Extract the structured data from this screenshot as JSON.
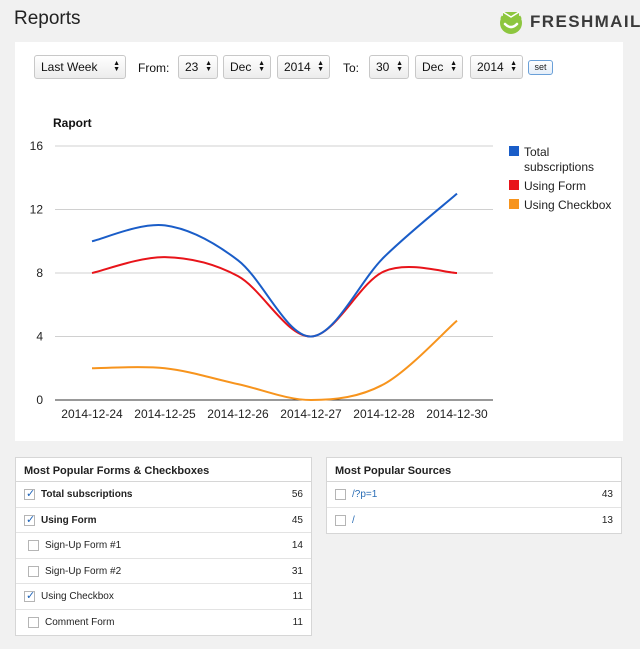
{
  "header": {
    "title": "Reports",
    "logo_text": "FRESHMAIL",
    "logo_color": "#8dc63f"
  },
  "filters": {
    "period": "Last Week",
    "from_label": "From:",
    "from_day": "23",
    "from_month": "Dec",
    "from_year": "2014",
    "to_label": "To:",
    "to_day": "30",
    "to_month": "Dec",
    "to_year": "2014",
    "set_label": "set"
  },
  "chart_data": {
    "type": "line",
    "title": "Raport",
    "x": [
      "2014-12-24",
      "2014-12-25",
      "2014-12-26",
      "2014-12-27",
      "2014-12-28",
      "2014-12-30"
    ],
    "ylim": [
      0,
      16
    ],
    "yticks": [
      0,
      4,
      8,
      12,
      16
    ],
    "grid": true,
    "legend_position": "right",
    "series": [
      {
        "name": "Total subscriptions",
        "name_lines": [
          "Total",
          "subscriptions"
        ],
        "color": "#1a5dc8",
        "values": [
          10,
          11,
          8.8,
          4,
          9,
          13
        ]
      },
      {
        "name": "Using Form",
        "name_lines": [
          "Using Form"
        ],
        "color": "#e8141a",
        "values": [
          8,
          9,
          7.8,
          4,
          8.1,
          8
        ]
      },
      {
        "name": "Using Checkbox",
        "name_lines": [
          "Using Checkbox"
        ],
        "color": "#f7941d",
        "values": [
          2,
          2,
          1,
          0,
          1,
          5
        ]
      }
    ]
  },
  "forms_box": {
    "title": "Most Popular Forms & Checkboxes",
    "rows": [
      {
        "label": "Total subscriptions",
        "count": "56",
        "checked": true,
        "bold": true,
        "indent": false
      },
      {
        "label": "Using Form",
        "count": "45",
        "checked": true,
        "bold": true,
        "indent": false
      },
      {
        "label": "Sign-Up Form #1",
        "count": "14",
        "checked": false,
        "bold": false,
        "indent": true
      },
      {
        "label": "Sign-Up Form #2",
        "count": "31",
        "checked": false,
        "bold": false,
        "indent": true
      },
      {
        "label": "Using Checkbox",
        "count": "11",
        "checked": true,
        "bold": false,
        "indent": false
      },
      {
        "label": "Comment Form",
        "count": "11",
        "checked": false,
        "bold": false,
        "indent": true
      }
    ]
  },
  "sources_box": {
    "title": "Most Popular Sources",
    "rows": [
      {
        "label": "/?p=1",
        "count": "43",
        "checked": false
      },
      {
        "label": "/",
        "count": "13",
        "checked": false
      }
    ]
  }
}
